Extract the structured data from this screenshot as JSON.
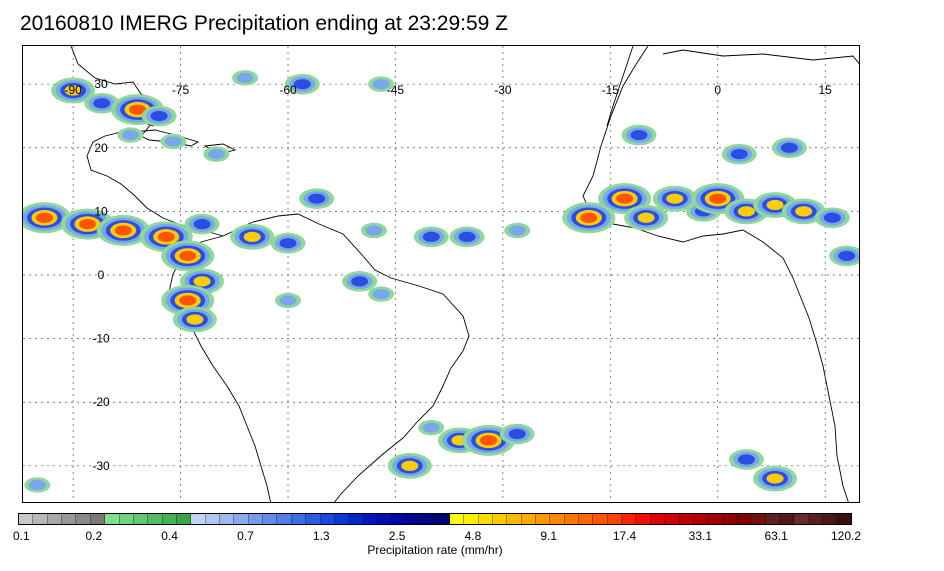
{
  "title": "20160810 IMERG Precipitation ending at 23:29:59 Z",
  "map": {
    "lon_labels": [
      {
        "lon": -90,
        "text": "-90"
      },
      {
        "lon": -75,
        "text": "-75"
      },
      {
        "lon": -60,
        "text": "-60"
      },
      {
        "lon": -45,
        "text": "-45"
      },
      {
        "lon": -30,
        "text": "-30"
      },
      {
        "lon": -15,
        "text": "-15"
      },
      {
        "lon": 0,
        "text": "0"
      },
      {
        "lon": 15,
        "text": "15"
      }
    ],
    "lat_labels": [
      {
        "lat": 30,
        "text": "30"
      },
      {
        "lat": 20,
        "text": "20"
      },
      {
        "lat": 10,
        "text": "10"
      },
      {
        "lat": 0,
        "text": "0"
      },
      {
        "lat": -10,
        "text": "-10"
      },
      {
        "lat": -20,
        "text": "-20"
      },
      {
        "lat": -30,
        "text": "-30"
      }
    ],
    "lon_range": [
      -97,
      20
    ],
    "lat_range": [
      -36,
      36
    ],
    "grid": true
  },
  "colorbar": {
    "label": "Precipitation rate (mm/hr)",
    "tick_labels": [
      "0.1",
      "0.2",
      "0.4",
      "0.7",
      "1.3",
      "2.5",
      "4.8",
      "9.1",
      "17.4",
      "33.1",
      "63.1",
      "120.2"
    ],
    "colors": [
      "#c8c8c8",
      "#b8b8b8",
      "#a8a8a8",
      "#989898",
      "#888888",
      "#787878",
      "#7ee08a",
      "#70d47c",
      "#62c86e",
      "#54bc60",
      "#46b052",
      "#3aa446",
      "#c4d4f4",
      "#b2c6f2",
      "#9eb8f0",
      "#8aaaee",
      "#769cec",
      "#628eea",
      "#4e80e8",
      "#3a6ee4",
      "#2a5ce0",
      "#1a4adc",
      "#0a38d8",
      "#0028c8",
      "#0018c0",
      "#0010b0",
      "#0008a0",
      "#000890",
      "#000880",
      "#000870",
      "#ffff00",
      "#ffee00",
      "#ffdd00",
      "#ffcc00",
      "#ffbb00",
      "#ffaa00",
      "#ff9900",
      "#ff8800",
      "#ff7700",
      "#ff6600",
      "#ff5500",
      "#ff4400",
      "#ff2200",
      "#f01000",
      "#e00000",
      "#d00000",
      "#c00000",
      "#b00000",
      "#a00000",
      "#900000",
      "#800000",
      "#701010",
      "#602020",
      "#501818",
      "#6a2a2a",
      "#5a2020",
      "#4a1818",
      "#3a1010"
    ]
  },
  "precip_cells": [
    {
      "lon": -90,
      "lat": 29,
      "intensity": 4
    },
    {
      "lon": -86,
      "lat": 27,
      "intensity": 3
    },
    {
      "lon": -81,
      "lat": 26,
      "intensity": 5
    },
    {
      "lon": -78,
      "lat": 25,
      "intensity": 3
    },
    {
      "lon": -82,
      "lat": 22,
      "intensity": 2
    },
    {
      "lon": -76,
      "lat": 21,
      "intensity": 2
    },
    {
      "lon": -70,
      "lat": 19,
      "intensity": 2
    },
    {
      "lon": -66,
      "lat": 31,
      "intensity": 2
    },
    {
      "lon": -58,
      "lat": 30,
      "intensity": 3
    },
    {
      "lon": -47,
      "lat": 30,
      "intensity": 2
    },
    {
      "lon": -94,
      "lat": 9,
      "intensity": 5
    },
    {
      "lon": -88,
      "lat": 8,
      "intensity": 5
    },
    {
      "lon": -83,
      "lat": 7,
      "intensity": 5
    },
    {
      "lon": -77,
      "lat": 6,
      "intensity": 5
    },
    {
      "lon": -72,
      "lat": 8,
      "intensity": 3
    },
    {
      "lon": -65,
      "lat": 6,
      "intensity": 4
    },
    {
      "lon": -60,
      "lat": 5,
      "intensity": 3
    },
    {
      "lon": -56,
      "lat": 12,
      "intensity": 3
    },
    {
      "lon": -48,
      "lat": 7,
      "intensity": 2
    },
    {
      "lon": -40,
      "lat": 6,
      "intensity": 3
    },
    {
      "lon": -35,
      "lat": 6,
      "intensity": 3
    },
    {
      "lon": -28,
      "lat": 7,
      "intensity": 2
    },
    {
      "lon": -74,
      "lat": 3,
      "intensity": 5
    },
    {
      "lon": -72,
      "lat": -1,
      "intensity": 4
    },
    {
      "lon": -74,
      "lat": -4,
      "intensity": 5
    },
    {
      "lon": -73,
      "lat": -7,
      "intensity": 4
    },
    {
      "lon": -60,
      "lat": -4,
      "intensity": 2
    },
    {
      "lon": -50,
      "lat": -1,
      "intensity": 3
    },
    {
      "lon": -47,
      "lat": -3,
      "intensity": 2
    },
    {
      "lon": -18,
      "lat": 9,
      "intensity": 5
    },
    {
      "lon": -13,
      "lat": 12,
      "intensity": 5
    },
    {
      "lon": -10,
      "lat": 9,
      "intensity": 4
    },
    {
      "lon": -6,
      "lat": 12,
      "intensity": 4
    },
    {
      "lon": -2,
      "lat": 10,
      "intensity": 3
    },
    {
      "lon": 0,
      "lat": 12,
      "intensity": 5
    },
    {
      "lon": 4,
      "lat": 10,
      "intensity": 4
    },
    {
      "lon": 8,
      "lat": 11,
      "intensity": 4
    },
    {
      "lon": 12,
      "lat": 10,
      "intensity": 4
    },
    {
      "lon": 16,
      "lat": 9,
      "intensity": 3
    },
    {
      "lon": -11,
      "lat": 22,
      "intensity": 3
    },
    {
      "lon": 3,
      "lat": 19,
      "intensity": 3
    },
    {
      "lon": 10,
      "lat": 20,
      "intensity": 3
    },
    {
      "lon": 18,
      "lat": 3,
      "intensity": 3
    },
    {
      "lon": -40,
      "lat": -24,
      "intensity": 2
    },
    {
      "lon": -36,
      "lat": -26,
      "intensity": 4
    },
    {
      "lon": -32,
      "lat": -26,
      "intensity": 5
    },
    {
      "lon": -43,
      "lat": -30,
      "intensity": 4
    },
    {
      "lon": -28,
      "lat": -25,
      "intensity": 3
    },
    {
      "lon": 4,
      "lat": -29,
      "intensity": 3
    },
    {
      "lon": 8,
      "lat": -32,
      "intensity": 4
    },
    {
      "lon": -95,
      "lat": -33,
      "intensity": 2
    }
  ]
}
